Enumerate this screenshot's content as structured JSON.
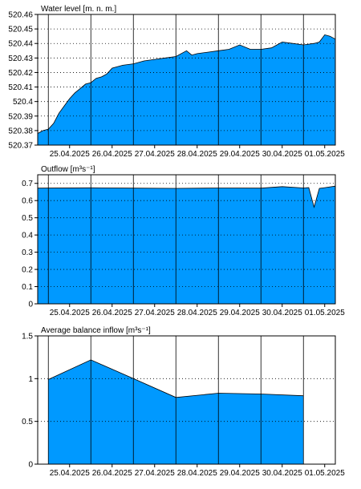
{
  "colors": {
    "fill": "#0099ff",
    "outline": "#000000",
    "grid": "#000000",
    "background": "#ffffff"
  },
  "x_ticks": [
    "25.04.2025",
    "26.04.2025",
    "27.04.2025",
    "28.04.2025",
    "29.04.2025",
    "30.04.2025",
    "01.05.2025"
  ],
  "chart_data": [
    {
      "type": "area",
      "title": "Water level [m. n. m.]",
      "xlabel": "",
      "ylabel": "",
      "x_range": [
        "24.04.2025 18:00",
        "01.05.2025 18:00"
      ],
      "ylim": [
        520.37,
        520.46
      ],
      "yticks": [
        "520.37",
        "520.38",
        "520.39",
        "520.4",
        "520.41",
        "520.42",
        "520.43",
        "520.44",
        "520.45",
        "520.46"
      ],
      "grid": true,
      "x": [
        "24.04.2025 18:00",
        "24.04.2025 21:00",
        "25.04.2025 00:00",
        "25.04.2025 03:00",
        "25.04.2025 06:00",
        "25.04.2025 09:00",
        "25.04.2025 12:00",
        "25.04.2025 15:00",
        "25.04.2025 18:00",
        "25.04.2025 21:00",
        "26.04.2025 00:00",
        "26.04.2025 03:00",
        "26.04.2025 06:00",
        "26.04.2025 09:00",
        "26.04.2025 12:00",
        "26.04.2025 18:00",
        "27.04.2025 00:00",
        "27.04.2025 06:00",
        "27.04.2025 12:00",
        "27.04.2025 18:00",
        "28.04.2025 00:00",
        "28.04.2025 06:00",
        "28.04.2025 09:00",
        "28.04.2025 12:00",
        "28.04.2025 18:00",
        "29.04.2025 00:00",
        "29.04.2025 06:00",
        "29.04.2025 12:00",
        "29.04.2025 18:00",
        "30.04.2025 00:00",
        "30.04.2025 06:00",
        "30.04.2025 12:00",
        "30.04.2025 18:00",
        "01.05.2025 00:00",
        "01.05.2025 06:00",
        "01.05.2025 09:00",
        "01.05.2025 12:00",
        "01.05.2025 15:00",
        "01.05.2025 18:00"
      ],
      "values": [
        520.378,
        520.38,
        520.381,
        520.385,
        520.392,
        520.397,
        520.402,
        520.406,
        520.409,
        520.412,
        520.413,
        520.416,
        520.417,
        520.419,
        520.423,
        520.425,
        520.426,
        520.428,
        520.429,
        520.43,
        520.431,
        520.435,
        520.432,
        520.433,
        520.434,
        520.435,
        520.436,
        520.439,
        520.436,
        520.436,
        520.437,
        520.441,
        520.44,
        520.439,
        520.44,
        520.441,
        520.446,
        520.445,
        520.443
      ]
    },
    {
      "type": "area",
      "title": "Outflow [m³s⁻¹]",
      "xlabel": "",
      "ylabel": "",
      "x_range": [
        "24.04.2025 18:00",
        "01.05.2025 18:00"
      ],
      "ylim": [
        0,
        0.75
      ],
      "yticks": [
        "0",
        "0.1",
        "0.2",
        "0.3",
        "0.4",
        "0.5",
        "0.6",
        "0.7"
      ],
      "grid": true,
      "x": [
        "24.04.2025 18:00",
        "26.04.2025 00:00",
        "27.04.2025 00:00",
        "28.04.2025 00:00",
        "29.04.2025 00:00",
        "30.04.2025 00:00",
        "30.04.2025 12:00",
        "01.05.2025 00:00",
        "01.05.2025 03:00",
        "01.05.2025 06:00",
        "01.05.2025 09:00",
        "01.05.2025 12:00",
        "01.05.2025 18:00"
      ],
      "values": [
        0.672,
        0.674,
        0.672,
        0.671,
        0.673,
        0.672,
        0.681,
        0.673,
        0.675,
        0.562,
        0.671,
        0.675,
        0.684
      ]
    },
    {
      "type": "area",
      "title": "Average balance inflow  [m³s⁻¹]",
      "xlabel": "",
      "ylabel": "",
      "x_range": [
        "24.04.2025 18:00",
        "01.05.2025 18:00"
      ],
      "ylim": [
        0,
        1.5
      ],
      "yticks": [
        "0",
        "0.5",
        "1",
        "1.5"
      ],
      "grid": true,
      "x": [
        "25.04.2025 00:00",
        "26.04.2025 00:00",
        "27.04.2025 00:00",
        "28.04.2025 00:00",
        "29.04.2025 00:00",
        "30.04.2025 00:00",
        "01.05.2025 00:00"
      ],
      "values": [
        0.99,
        1.22,
        1.0,
        0.78,
        0.83,
        0.82,
        0.8
      ]
    }
  ]
}
